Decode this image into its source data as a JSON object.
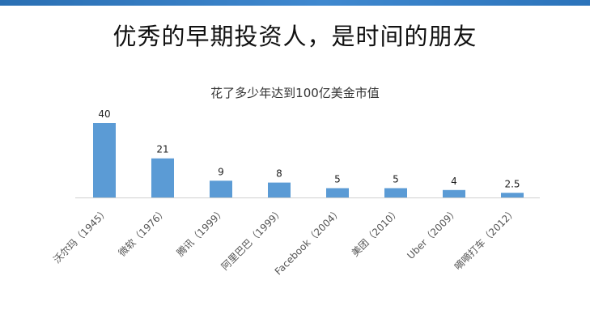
{
  "slide": {
    "title": "优秀的早期投资人，是时间的朋友"
  },
  "chart_data": {
    "type": "bar",
    "title": "花了多少年达到100亿美金市值",
    "xlabel": "",
    "ylabel": "",
    "categories": [
      "沃尔玛（1945）",
      "微软（1976）",
      "腾讯（1999）",
      "阿里巴巴（1999）",
      "Facebook（2004）",
      "美团（2010）",
      "Uber（2009）",
      "嘀嘀打车（2012）"
    ],
    "values": [
      40,
      21,
      9,
      8,
      5,
      5,
      4,
      2.5
    ],
    "value_labels": [
      "40",
      "21",
      "9",
      "8",
      "5",
      "5",
      "4",
      "2.5"
    ],
    "ylim": [
      0,
      40
    ],
    "grid": false,
    "legend": "none",
    "bar_color": "#5b9bd5",
    "axis_color": "#d0d0d0"
  }
}
